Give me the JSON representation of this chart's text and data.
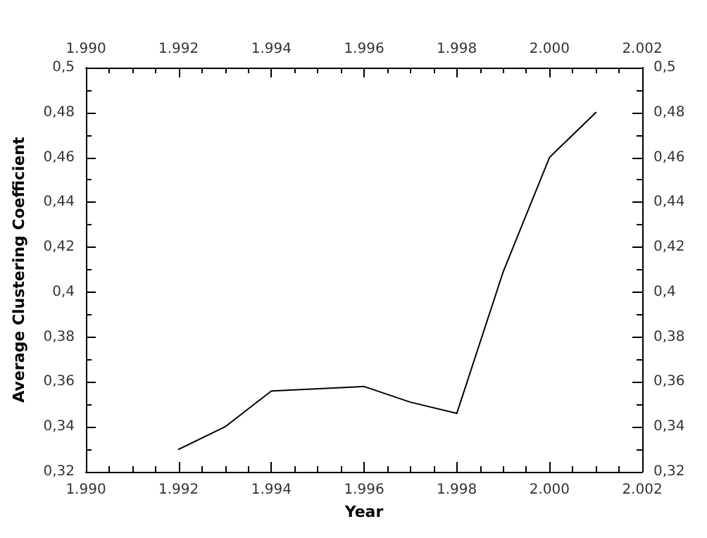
{
  "chart_data": {
    "type": "line",
    "xlabel": "Year",
    "ylabel": "Average Clustering Coefficient",
    "x": [
      1992,
      1993,
      1994,
      1996,
      1997,
      1998,
      1999,
      2000,
      2001
    ],
    "series": [
      {
        "color": "#000000",
        "values": [
          0.33,
          0.34,
          0.356,
          0.358,
          0.351,
          0.346,
          0.409,
          0.46,
          0.48
        ]
      }
    ],
    "xlim": [
      1990,
      2002
    ],
    "xticks": [
      {
        "value": 1990,
        "label": "1.990"
      },
      {
        "value": 1992,
        "label": "1.992"
      },
      {
        "value": 1994,
        "label": "1.994"
      },
      {
        "value": 1996,
        "label": "1.996"
      },
      {
        "value": 1998,
        "label": "1.998"
      },
      {
        "value": 2000,
        "label": "2.000"
      },
      {
        "value": 2002,
        "label": "2.002"
      }
    ],
    "x2lim": [
      1990,
      2002
    ],
    "x2ticks": [
      {
        "value": 1990,
        "label": "1.990"
      },
      {
        "value": 1992,
        "label": "1.992"
      },
      {
        "value": 1994,
        "label": "1.994"
      },
      {
        "value": 1996,
        "label": "1.996"
      },
      {
        "value": 1998,
        "label": "1.998"
      },
      {
        "value": 2000,
        "label": "2.000"
      },
      {
        "value": 2002,
        "label": "2.002"
      }
    ],
    "ylim": [
      0.32,
      0.5
    ],
    "yticks": [
      {
        "value": 0.32,
        "label": "0,32"
      },
      {
        "value": 0.34,
        "label": "0,34"
      },
      {
        "value": 0.36,
        "label": "0,36"
      },
      {
        "value": 0.38,
        "label": "0,38"
      },
      {
        "value": 0.4,
        "label": "0,4"
      },
      {
        "value": 0.42,
        "label": "0,42"
      },
      {
        "value": 0.44,
        "label": "0,44"
      },
      {
        "value": 0.46,
        "label": "0,46"
      },
      {
        "value": 0.48,
        "label": "0,48"
      },
      {
        "value": 0.5,
        "label": "0,5"
      }
    ],
    "y2lim": [
      0.32,
      0.5
    ],
    "y2ticks": [
      {
        "value": 0.32,
        "label": "0,32"
      },
      {
        "value": 0.34,
        "label": "0,34"
      },
      {
        "value": 0.36,
        "label": "0,36"
      },
      {
        "value": 0.38,
        "label": "0,38"
      },
      {
        "value": 0.4,
        "label": "0,4"
      },
      {
        "value": 0.42,
        "label": "0,42"
      },
      {
        "value": 0.44,
        "label": "0,44"
      },
      {
        "value": 0.46,
        "label": "0,46"
      },
      {
        "value": 0.48,
        "label": "0,48"
      },
      {
        "value": 0.5,
        "label": "0,5"
      }
    ],
    "grid": false,
    "marker": "none",
    "line_style": "solid"
  }
}
